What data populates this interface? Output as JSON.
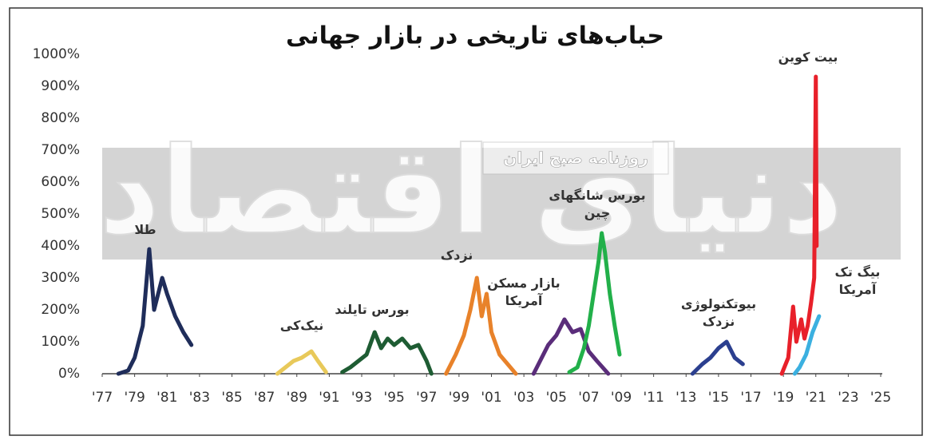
{
  "chart_data": {
    "type": "line",
    "title": "حباب‌های تاریخی در بازار جهانی",
    "watermark": "دنیای اقتصاد",
    "watermark_tag": "روزنامه صبح ایران",
    "xlim": [
      1977,
      2025
    ],
    "xticks": [
      {
        "value": 1977,
        "label": "'77"
      },
      {
        "value": 1979,
        "label": "'79"
      },
      {
        "value": 1981,
        "label": "'81"
      },
      {
        "value": 1983,
        "label": "'83"
      },
      {
        "value": 1985,
        "label": "'85"
      },
      {
        "value": 1987,
        "label": "'87"
      },
      {
        "value": 1989,
        "label": "'89"
      },
      {
        "value": 1991,
        "label": "'91"
      },
      {
        "value": 1993,
        "label": "'93"
      },
      {
        "value": 1995,
        "label": "'95"
      },
      {
        "value": 1997,
        "label": "'97"
      },
      {
        "value": 1999,
        "label": "'99"
      },
      {
        "value": 2001,
        "label": "'01"
      },
      {
        "value": 2003,
        "label": "'03"
      },
      {
        "value": 2005,
        "label": "'05"
      },
      {
        "value": 2007,
        "label": "'07"
      },
      {
        "value": 2009,
        "label": "'09"
      },
      {
        "value": 2011,
        "label": "'11"
      },
      {
        "value": 2013,
        "label": "'13"
      },
      {
        "value": 2015,
        "label": "'15"
      },
      {
        "value": 2017,
        "label": "'17"
      },
      {
        "value": 2019,
        "label": "'19"
      },
      {
        "value": 2021,
        "label": "'21"
      },
      {
        "value": 2023,
        "label": "'23"
      },
      {
        "value": 2025,
        "label": "'25"
      }
    ],
    "ylim": [
      0,
      1000
    ],
    "yticks": [
      {
        "value": 0,
        "label": "0%"
      },
      {
        "value": 100,
        "label": "100%"
      },
      {
        "value": 200,
        "label": "200%"
      },
      {
        "value": 300,
        "label": "300%"
      },
      {
        "value": 400,
        "label": "400%"
      },
      {
        "value": 500,
        "label": "500%"
      },
      {
        "value": 600,
        "label": "600%"
      },
      {
        "value": 700,
        "label": "700%"
      },
      {
        "value": 800,
        "label": "800%"
      },
      {
        "value": 900,
        "label": "900%"
      },
      {
        "value": 1000,
        "label": "1000%"
      }
    ],
    "series": [
      {
        "name": "طلا",
        "color": "#1f2d5a",
        "x": [
          1978,
          1978.6,
          1979,
          1979.5,
          1979.9,
          1980.2,
          1980.7,
          1981,
          1981.5,
          1982,
          1982.5
        ],
        "values": [
          0,
          10,
          50,
          150,
          390,
          200,
          300,
          250,
          180,
          130,
          90
        ]
      },
      {
        "name": "نیک‌کی",
        "color": "#e8c95a",
        "x": [
          1987.8,
          1988.3,
          1988.8,
          1989.3,
          1989.9,
          1990.3,
          1990.8
        ],
        "values": [
          0,
          20,
          40,
          50,
          70,
          40,
          5
        ]
      },
      {
        "name": "بورس تایلند",
        "color": "#1e5c33",
        "x": [
          1991.8,
          1992.3,
          1992.8,
          1993.3,
          1993.8,
          1994.2,
          1994.6,
          1995,
          1995.5,
          1996,
          1996.5,
          1997,
          1997.3
        ],
        "values": [
          5,
          20,
          40,
          60,
          130,
          80,
          110,
          90,
          110,
          80,
          90,
          40,
          0
        ]
      },
      {
        "name": "نزدک",
        "color": "#e8822a",
        "x": [
          1998.2,
          1998.8,
          1999.3,
          1999.7,
          2000.1,
          2000.4,
          2000.7,
          2001,
          2001.5,
          2002,
          2002.5
        ],
        "values": [
          0,
          60,
          120,
          200,
          300,
          180,
          250,
          130,
          60,
          30,
          0
        ]
      },
      {
        "name": "بازار مسکن\nآمریکا",
        "color": "#5a2d7a",
        "x": [
          2003.6,
          2004,
          2004.5,
          2005,
          2005.5,
          2006,
          2006.5,
          2007,
          2007.5,
          2008.2
        ],
        "values": [
          0,
          40,
          90,
          120,
          170,
          130,
          140,
          70,
          40,
          0
        ]
      },
      {
        "name": "بورس شانگهای\nچین",
        "color": "#22b04a",
        "x": [
          2005.8,
          2006.3,
          2006.7,
          2007,
          2007.3,
          2007.6,
          2007.8,
          2008,
          2008.3,
          2008.6,
          2008.9
        ],
        "values": [
          5,
          20,
          80,
          150,
          250,
          350,
          440,
          380,
          250,
          150,
          60
        ]
      },
      {
        "name": "بیوتکنولوژی\nنزدک",
        "color": "#2b3f8f",
        "x": [
          2013.4,
          2014,
          2014.5,
          2015,
          2015.5,
          2016,
          2016.5
        ],
        "values": [
          0,
          30,
          50,
          80,
          100,
          50,
          30
        ]
      },
      {
        "name": "بیت کوین",
        "color": "#e8202a",
        "x": [
          2018.9,
          2019.3,
          2019.6,
          2019.8,
          2020.1,
          2020.3,
          2020.5,
          2020.7,
          2020.9,
          2021,
          2021.05
        ],
        "values": [
          0,
          50,
          210,
          100,
          170,
          110,
          150,
          220,
          300,
          930,
          400
        ]
      },
      {
        "name": "بیگ تک آمریکا",
        "color": "#3bb0e0",
        "x": [
          2019.7,
          2020,
          2020.4,
          2020.8,
          2021.2
        ],
        "values": [
          0,
          20,
          60,
          130,
          180
        ]
      }
    ]
  }
}
